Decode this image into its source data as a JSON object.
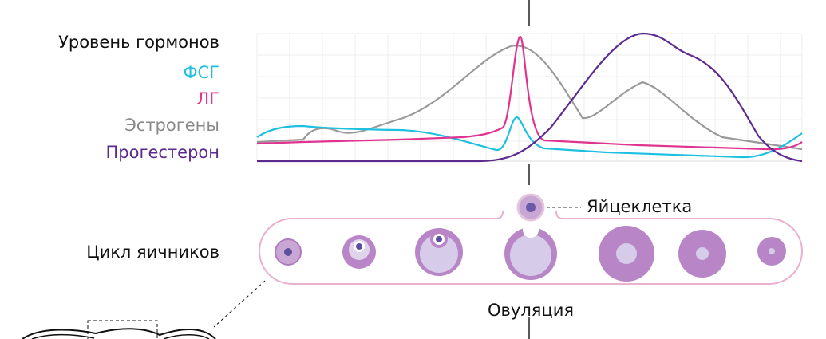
{
  "hormones": {
    "title": "Уровень гормонов",
    "legend": [
      "ФСГ",
      "ЛГ",
      "Эстрогены",
      "Прогестерон"
    ]
  },
  "egg_label": "Яйцеклетка",
  "ovarian_cycle": {
    "title": "Цикл яичников"
  },
  "ovulation_label": "Овуляция"
}
